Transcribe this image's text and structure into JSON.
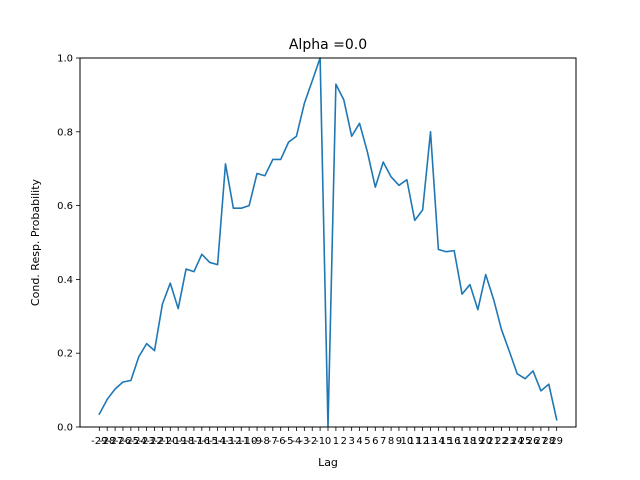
{
  "chart_data": {
    "type": "line",
    "title": "Alpha =0.0",
    "xlabel": "Lag",
    "ylabel": "Cond. Resp. Probability",
    "xlim": [
      -31.45,
      31.45
    ],
    "ylim": [
      0.0,
      1.0
    ],
    "yticks": [
      0.0,
      0.2,
      0.4,
      0.6,
      0.8,
      1.0
    ],
    "ytick_labels": [
      "0.0",
      "0.2",
      "0.4",
      "0.6",
      "0.8",
      "1.0"
    ],
    "xticks": [
      -29,
      -28,
      -27,
      -26,
      -25,
      -24,
      -23,
      -22,
      -21,
      -20,
      -19,
      -18,
      -17,
      -16,
      -15,
      -14,
      -13,
      -12,
      -11,
      -10,
      -9,
      -8,
      -7,
      -6,
      -5,
      -4,
      -3,
      -2,
      -1,
      0,
      1,
      2,
      3,
      4,
      5,
      6,
      7,
      8,
      9,
      10,
      11,
      12,
      13,
      14,
      15,
      16,
      17,
      18,
      19,
      20,
      21,
      22,
      23,
      24,
      25,
      26,
      27,
      28,
      29
    ],
    "xtick_labels": [
      "-29",
      "-28",
      "-27",
      "-26",
      "-25",
      "-24",
      "-23",
      "-22",
      "-21",
      "-20",
      "-19",
      "-18",
      "-17",
      "-16",
      "-15",
      "-14",
      "-13",
      "-12",
      "-11",
      "-10",
      "-9",
      "-8",
      "-7",
      "-6",
      "-5",
      "-4",
      "-3",
      "-2",
      "-1",
      "0",
      "1",
      "2",
      "3",
      "4",
      "5",
      "6",
      "7",
      "8",
      "9",
      "10",
      "11",
      "12",
      "13",
      "14",
      "15",
      "16",
      "17",
      "18",
      "19",
      "20",
      "21",
      "22",
      "23",
      "24",
      "25",
      "26",
      "27",
      "28",
      "29"
    ],
    "grid": false,
    "series": [
      {
        "color": "#1f77b4",
        "x": [
          -29,
          -28,
          -27,
          -26,
          -25,
          -24,
          -23,
          -22,
          -21,
          -20,
          -19,
          -18,
          -17,
          -16,
          -15,
          -14,
          -13,
          -12,
          -11,
          -10,
          -9,
          -8,
          -7,
          -6,
          -5,
          -4,
          -3,
          -2,
          -1,
          0,
          1,
          2,
          3,
          4,
          5,
          6,
          7,
          8,
          9,
          10,
          11,
          12,
          13,
          14,
          15,
          16,
          17,
          18,
          19,
          20,
          21,
          22,
          23,
          24,
          25,
          26,
          27,
          28,
          29
        ],
        "y": [
          0.035,
          0.075,
          0.103,
          0.122,
          0.126,
          0.19,
          0.226,
          0.207,
          0.333,
          0.39,
          0.321,
          0.428,
          0.421,
          0.468,
          0.446,
          0.44,
          0.713,
          0.593,
          0.593,
          0.6,
          0.687,
          0.681,
          0.725,
          0.725,
          0.772,
          0.788,
          0.877,
          0.938,
          1.0,
          0.0,
          0.929,
          0.887,
          0.788,
          0.823,
          0.745,
          0.65,
          0.718,
          0.678,
          0.655,
          0.67,
          0.56,
          0.588,
          0.8,
          0.481,
          0.475,
          0.478,
          0.36,
          0.386,
          0.318,
          0.413,
          0.346,
          0.264,
          0.205,
          0.144,
          0.131,
          0.152,
          0.098,
          0.116,
          0.02
        ]
      }
    ]
  }
}
